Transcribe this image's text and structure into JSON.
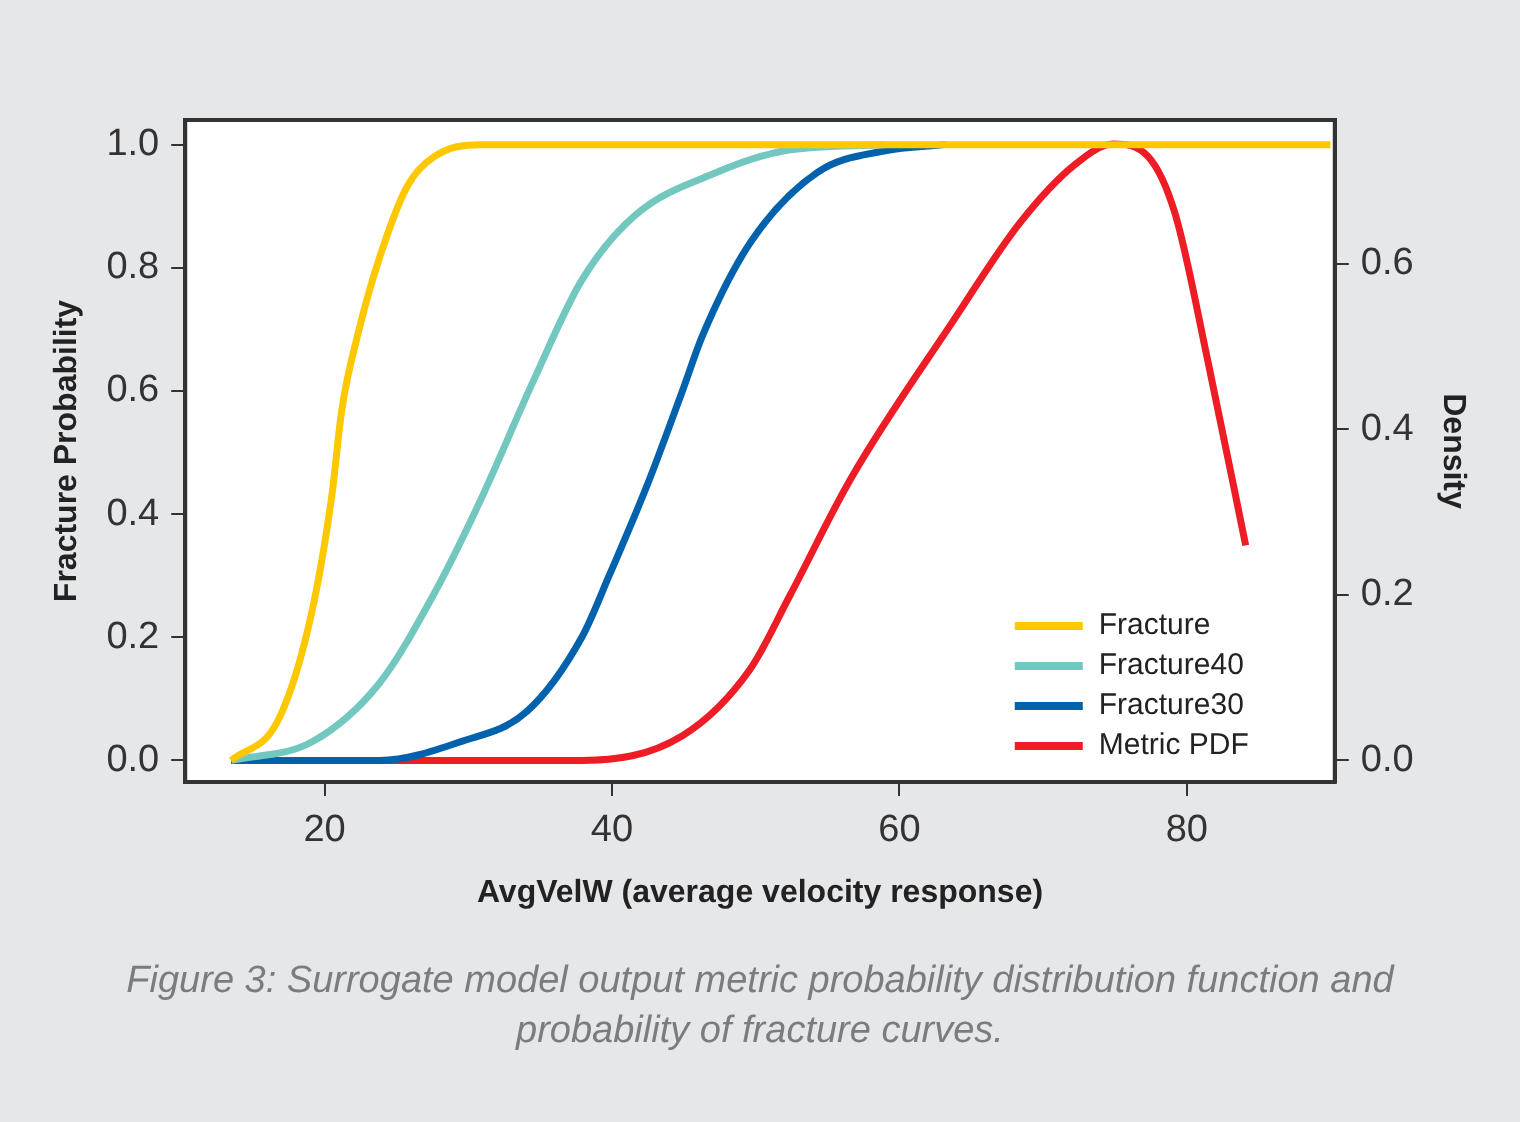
{
  "chart_data": {
    "type": "line",
    "xlabel": "AvgVelW (average velocity response)",
    "ylabel": "Fracture Probability",
    "y2label": "Density",
    "annotations": [
      "Figure 3: Surrogate model output metric probability distribution function and probability of fracture curves."
    ],
    "xlim": [
      10.3,
      90.3
    ],
    "xticks": [
      20,
      40,
      60,
      80
    ],
    "ylim": [
      -0.035,
      1.04
    ],
    "yticks": [
      {
        "value": 0,
        "label": "0.0"
      },
      {
        "value": 0.2,
        "label": "0.2"
      },
      {
        "value": 0.4,
        "label": "0.4"
      },
      {
        "value": 0.6,
        "label": "0.6"
      },
      {
        "value": 0.8,
        "label": "0.8"
      },
      {
        "value": 1,
        "label": "1.0"
      }
    ],
    "y2lim": [
      -0.026,
      0.774
    ],
    "y2ticks": [
      {
        "value": 0,
        "label": "0.0"
      },
      {
        "value": 0.2,
        "label": "0.2"
      },
      {
        "value": 0.4,
        "label": "0.4"
      },
      {
        "value": 0.6,
        "label": "0.6"
      }
    ],
    "grid": false,
    "legend": "bottom right",
    "marker": "none",
    "line_style": "solid",
    "series": [
      {
        "name": "Fracture",
        "color": "#fdc800",
        "x": [
          13.5,
          16.8,
          19.1,
          20.5,
          21.2,
          22.4,
          23.8,
          25.7,
          27.6,
          30.8,
          90
        ],
        "values": [
          0,
          0.067,
          0.24,
          0.43,
          0.57,
          0.7,
          0.815,
          0.93,
          0.98,
          1,
          1
        ]
      },
      {
        "name": "Fracture40",
        "color": "#72c8bf",
        "x": [
          13.5,
          19.1,
          23.8,
          27.6,
          30.8,
          34.6,
          37.9,
          41.6,
          47.3,
          52,
          59
        ],
        "values": [
          0,
          0.03,
          0.125,
          0.27,
          0.42,
          0.62,
          0.78,
          0.885,
          0.955,
          0.99,
          1
        ]
      },
      {
        "name": "Fracture30",
        "color": "#0062ad",
        "x": [
          13.5,
          23.8,
          29.4,
          34.1,
          37.9,
          39.8,
          42.5,
          44.9,
          46.3,
          49.6,
          54.3,
          59,
          63.2
        ],
        "values": [
          0,
          0,
          0.03,
          0.08,
          0.2,
          0.3,
          0.45,
          0.6,
          0.69,
          0.84,
          0.955,
          0.99,
          1
        ]
      },
      {
        "name": "Metric PDF",
        "color": "#ee1c25",
        "axis": "y2",
        "x": [
          13.5,
          37.9,
          44.9,
          49.6,
          52.4,
          56.6,
          63.7,
          68.4,
          72.2,
          74.9,
          77.3,
          79.2,
          81.5,
          84.1
        ],
        "values": [
          0,
          0,
          0.03,
          0.11,
          0.2,
          0.34,
          0.53,
          0.65,
          0.72,
          0.745,
          0.73,
          0.66,
          0.48,
          0.26
        ]
      }
    ]
  }
}
